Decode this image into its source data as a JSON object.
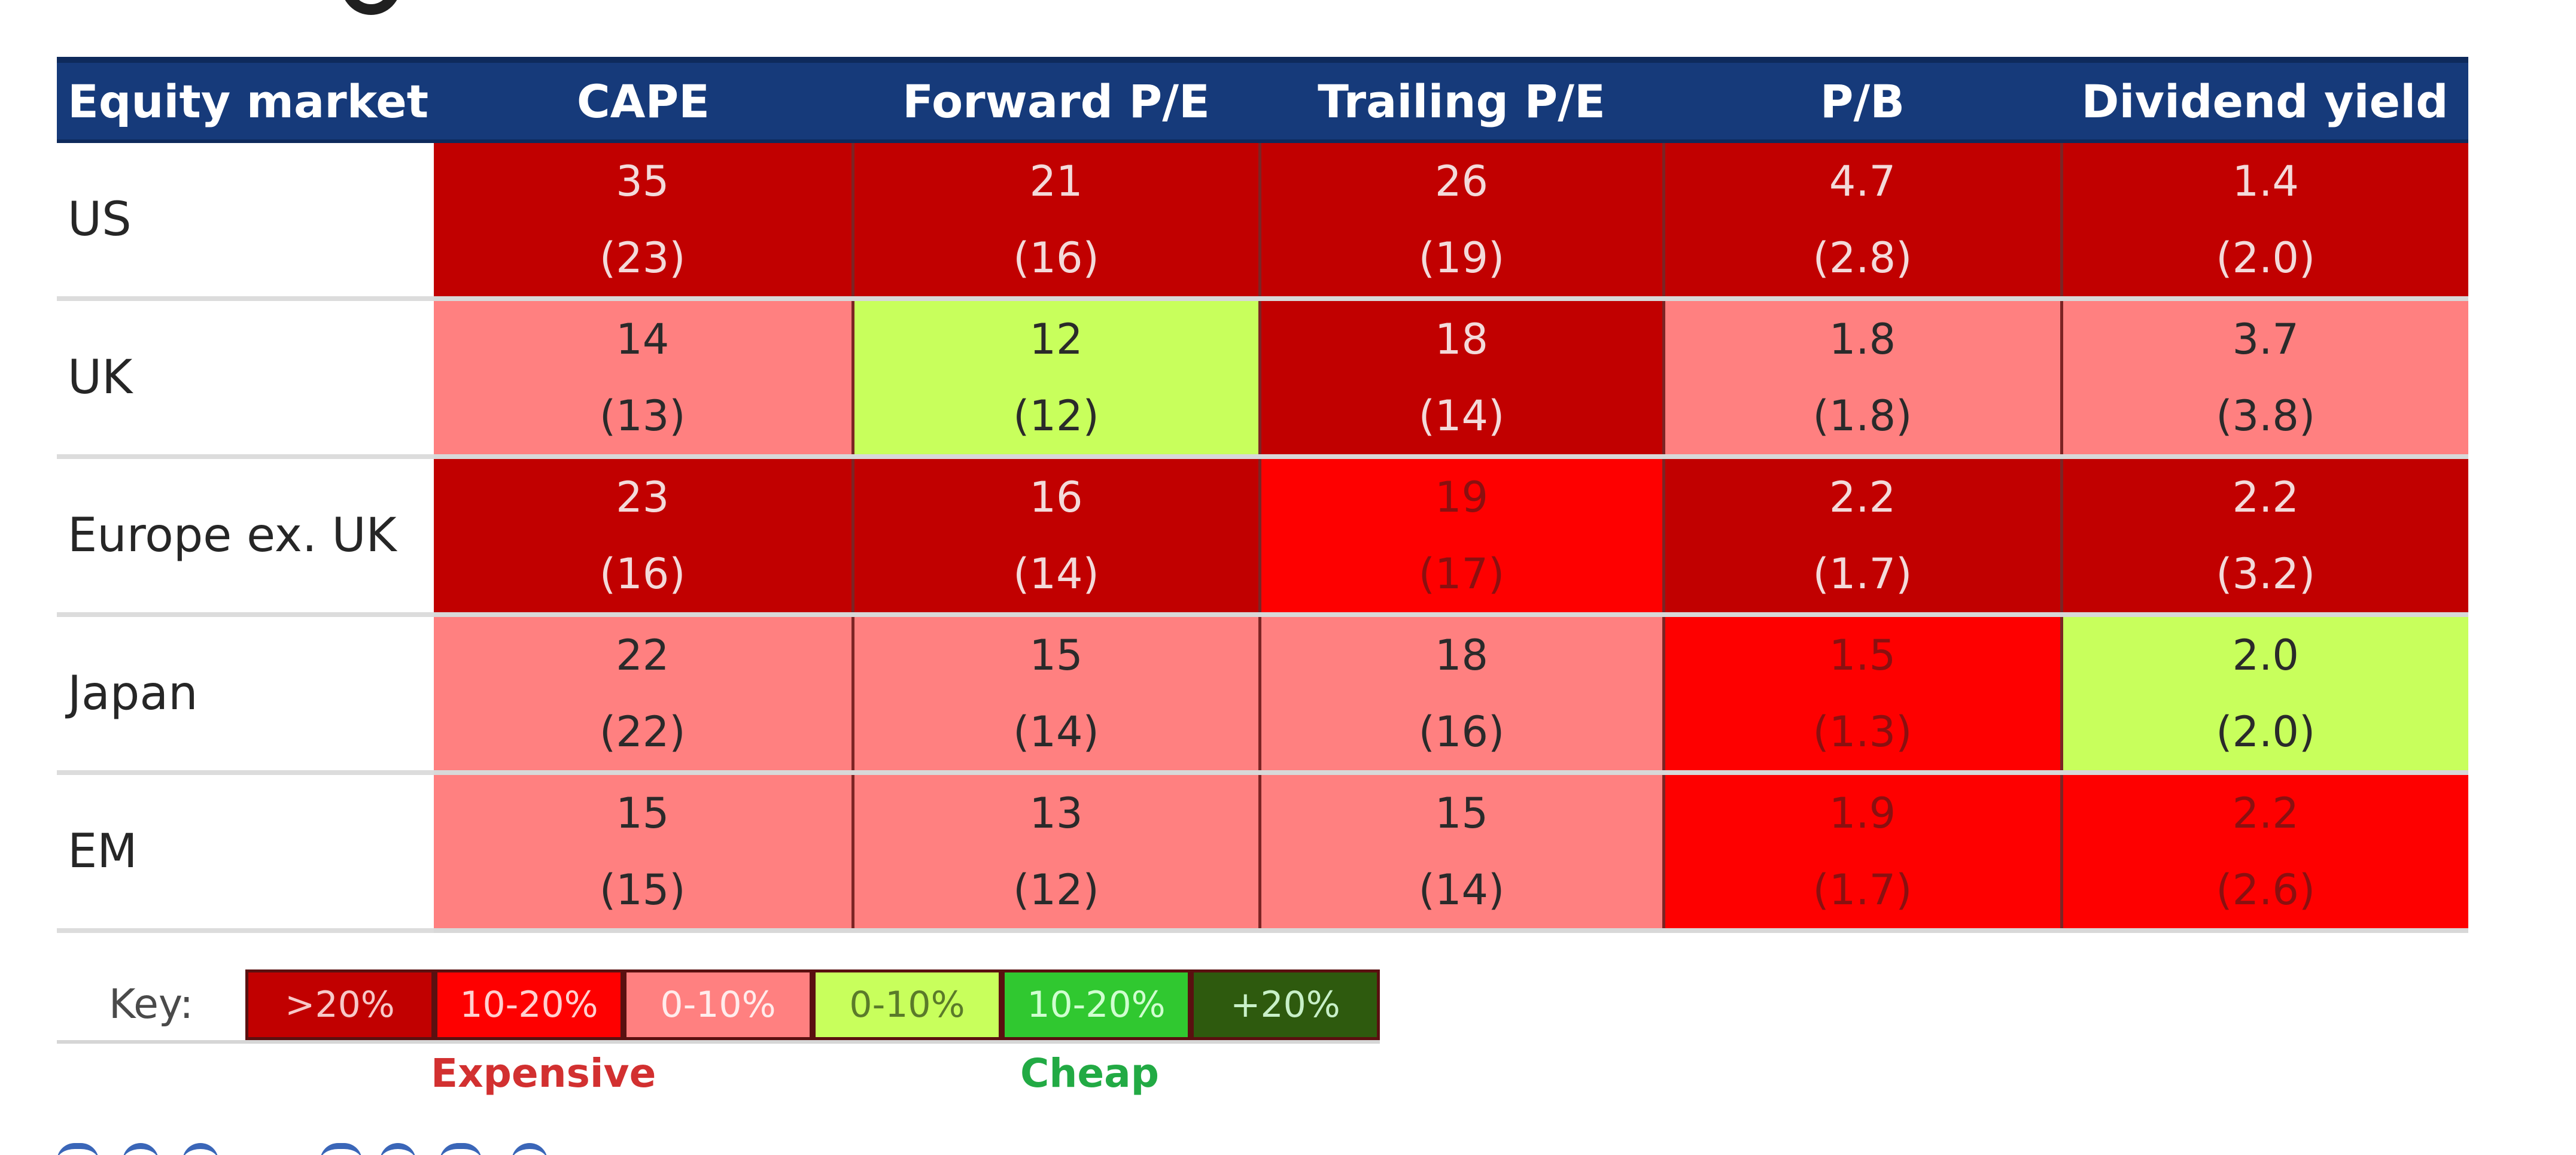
{
  "chart_data": {
    "type": "table",
    "columns": [
      "Equity market",
      "CAPE",
      "Forward P/E",
      "Trailing P/E",
      "P/B",
      "Dividend yield"
    ],
    "rows": [
      {
        "market": "US",
        "cells": [
          {
            "value": "35",
            "average": "(23)",
            "category": "exp20"
          },
          {
            "value": "21",
            "average": "(16)",
            "category": "exp20"
          },
          {
            "value": "26",
            "average": "(19)",
            "category": "exp20"
          },
          {
            "value": "4.7",
            "average": "(2.8)",
            "category": "exp20"
          },
          {
            "value": "1.4",
            "average": "(2.0)",
            "category": "exp20"
          }
        ]
      },
      {
        "market": "UK",
        "cells": [
          {
            "value": "14",
            "average": "(13)",
            "category": "exp0"
          },
          {
            "value": "12",
            "average": "(12)",
            "category": "cheap0"
          },
          {
            "value": "18",
            "average": "(14)",
            "category": "exp20"
          },
          {
            "value": "1.8",
            "average": "(1.8)",
            "category": "exp0"
          },
          {
            "value": "3.7",
            "average": "(3.8)",
            "category": "exp0"
          }
        ]
      },
      {
        "market": "Europe ex. UK",
        "cells": [
          {
            "value": "23",
            "average": "(16)",
            "category": "exp20"
          },
          {
            "value": "16",
            "average": "(14)",
            "category": "exp20"
          },
          {
            "value": "19",
            "average": "(17)",
            "category": "exp10"
          },
          {
            "value": "2.2",
            "average": "(1.7)",
            "category": "exp20"
          },
          {
            "value": "2.2",
            "average": "(3.2)",
            "category": "exp20"
          }
        ]
      },
      {
        "market": "Japan",
        "cells": [
          {
            "value": "22",
            "average": "(22)",
            "category": "exp0"
          },
          {
            "value": "15",
            "average": "(14)",
            "category": "exp0"
          },
          {
            "value": "18",
            "average": "(16)",
            "category": "exp0"
          },
          {
            "value": "1.5",
            "average": "(1.3)",
            "category": "exp10"
          },
          {
            "value": "2.0",
            "average": "(2.0)",
            "category": "cheap0"
          }
        ]
      },
      {
        "market": "EM",
        "cells": [
          {
            "value": "15",
            "average": "(15)",
            "category": "exp0"
          },
          {
            "value": "13",
            "average": "(12)",
            "category": "exp0"
          },
          {
            "value": "15",
            "average": "(14)",
            "category": "exp0"
          },
          {
            "value": "1.9",
            "average": "(1.7)",
            "category": "exp10"
          },
          {
            "value": "2.2",
            "average": "(2.6)",
            "category": "exp10"
          }
        ]
      }
    ],
    "key": {
      "label": "Key:",
      "items": [
        {
          "id": "exp20",
          "label": ">20%",
          "color": "#c10000"
        },
        {
          "id": "exp10",
          "label": "10-20%",
          "color": "#fe0000"
        },
        {
          "id": "exp0",
          "label": "0-10%",
          "color": "#ff8080"
        },
        {
          "id": "cheap0",
          "label": "0-10%",
          "color": "#c8ff5c"
        },
        {
          "id": "cheap10",
          "label": "10-20%",
          "color": "#30c830"
        },
        {
          "id": "cheap20",
          "label": "+20%",
          "color": "#2e5a0e"
        }
      ],
      "expensive_label": "Expensive",
      "cheap_label": "Cheap"
    },
    "colors": {
      "header_bg": "#163a7a",
      "expensive_text": "#d23030",
      "cheap_text": "#22aa44"
    }
  }
}
